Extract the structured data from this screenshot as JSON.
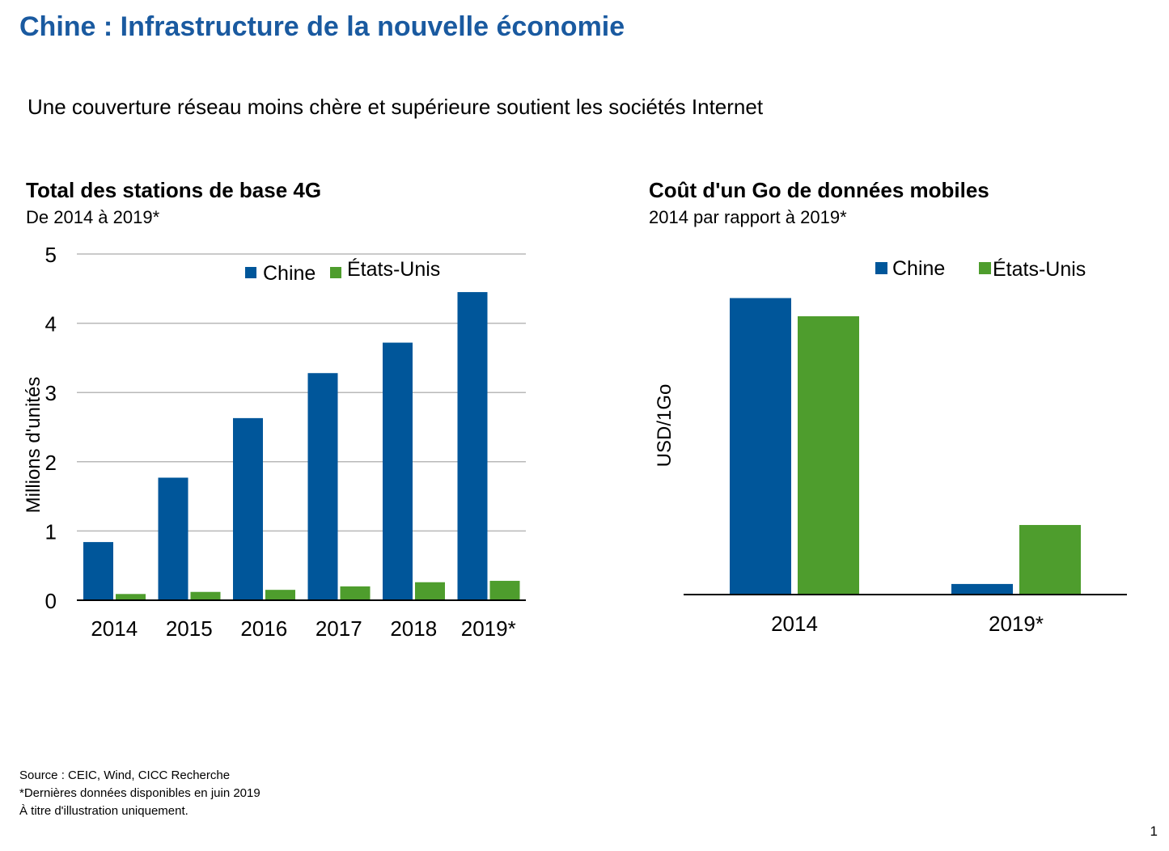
{
  "header": {
    "title": "Chine : Infrastructure de la nouvelle économie",
    "subtitle": "Une couverture réseau moins chère et supérieure soutient les sociétés Internet"
  },
  "colors": {
    "china": "#00569a",
    "usa": "#4e9d2d",
    "title": "#1a5aa0"
  },
  "chart_data": [
    {
      "type": "bar",
      "title": "Total des stations de base 4G",
      "subtitle": "De 2014 à 2019*",
      "ylabel": "Millions d'unités",
      "xlabel": "",
      "categories": [
        "2014",
        "2015",
        "2016",
        "2017",
        "2018",
        "2019*"
      ],
      "yticks": [
        "0",
        "1",
        "2",
        "3",
        "4",
        "5"
      ],
      "ylim": [
        0,
        5
      ],
      "grid": true,
      "legend": "top-center",
      "series": [
        {
          "name": "Chine",
          "values": [
            0.84,
            1.77,
            2.63,
            3.28,
            3.72,
            4.45
          ]
        },
        {
          "name": "États-Unis",
          "values": [
            0.09,
            0.12,
            0.15,
            0.2,
            0.26,
            0.28
          ]
        }
      ]
    },
    {
      "type": "bar",
      "title": "Coût d'un Go de données mobiles",
      "subtitle": "2014 par rapport à 2019*",
      "ylabel": "USD/1Go",
      "xlabel": "",
      "categories": [
        "2014",
        "2019*"
      ],
      "ylim": [
        0,
        10
      ],
      "grid": false,
      "legend": "top-right",
      "series": [
        {
          "name": "Chine",
          "values": [
            9.8,
            0.35
          ]
        },
        {
          "name": "États-Unis",
          "values": [
            9.2,
            2.3
          ]
        }
      ]
    }
  ],
  "footer": {
    "source": "Source : CEIC, Wind, CICC Recherche",
    "note": "*Dernières données disponibles en juin 2019",
    "disclaimer": "À titre d'illustration uniquement.",
    "page_number": "1"
  }
}
